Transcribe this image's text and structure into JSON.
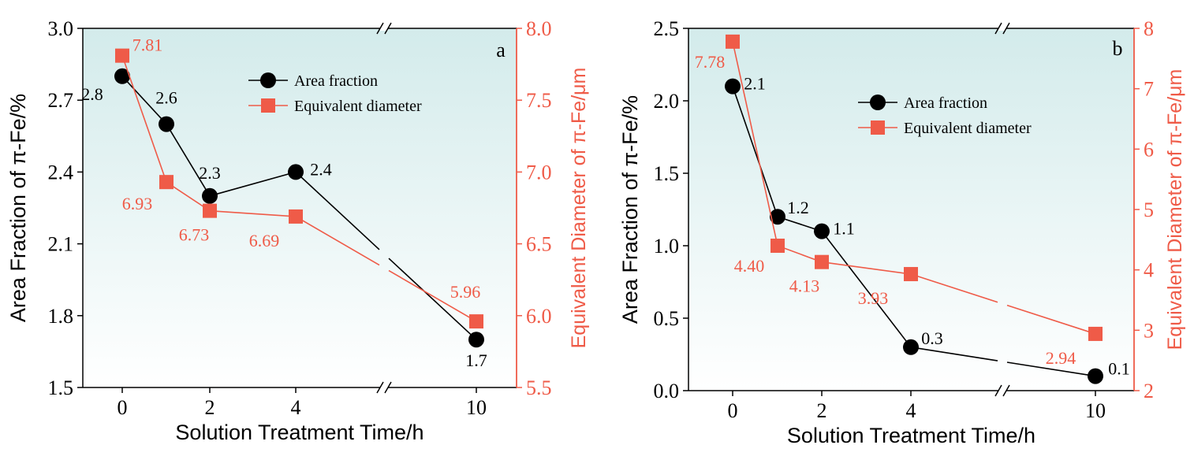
{
  "chart_data": [
    {
      "type": "line",
      "panel_label": "a",
      "xlabel": "Solution Treatment Time/h",
      "ylabel": "Area Fraction of π-Fe/%",
      "y2label": "Equivalent Diameter of π-Fe/μm",
      "x": [
        0,
        1,
        2,
        4,
        10
      ],
      "x_ticks": [
        "0",
        "2",
        "4",
        "10"
      ],
      "x_axis_break": "between 4 and 10",
      "ylim": [
        1.5,
        3.0
      ],
      "y_ticks": [
        "1.5",
        "1.8",
        "2.1",
        "2.4",
        "2.7",
        "3.0"
      ],
      "y2lim": [
        5.5,
        8.0
      ],
      "y2_ticks": [
        "5.5",
        "6.0",
        "6.5",
        "7.0",
        "7.5",
        "8.0"
      ],
      "legend_position": "top-right",
      "series": [
        {
          "name": "Area fraction",
          "axis": "left",
          "color": "#000000",
          "marker": "circle",
          "values": [
            2.8,
            2.6,
            2.3,
            2.4,
            1.7
          ],
          "labels": [
            "2.8",
            "2.6",
            "2.3",
            "2.4",
            "1.7"
          ]
        },
        {
          "name": "Equivalent diameter",
          "axis": "right",
          "color": "#ef5b48",
          "marker": "square",
          "values": [
            7.81,
            6.93,
            6.73,
            6.69,
            5.96
          ],
          "labels": [
            "7.81",
            "6.93",
            "6.73",
            "6.69",
            "5.96"
          ]
        }
      ]
    },
    {
      "type": "line",
      "panel_label": "b",
      "xlabel": "Solution Treatment Time/h",
      "ylabel": "Area Fraction of π-Fe/%",
      "y2label": "Equivalent Diameter of π-Fe/μm",
      "x": [
        0,
        1,
        2,
        4,
        10
      ],
      "x_ticks": [
        "0",
        "2",
        "4",
        "10"
      ],
      "x_axis_break": "between 4 and 10",
      "ylim": [
        0.0,
        2.5
      ],
      "y_ticks": [
        "0.0",
        "0.5",
        "1.0",
        "1.5",
        "2.0",
        "2.5"
      ],
      "y2lim": [
        2,
        8
      ],
      "y2_ticks": [
        "2",
        "3",
        "4",
        "5",
        "6",
        "7",
        "8"
      ],
      "legend_position": "top-center",
      "series": [
        {
          "name": "Area fraction",
          "axis": "left",
          "color": "#000000",
          "marker": "circle",
          "values": [
            2.1,
            1.2,
            1.1,
            0.3,
            0.1
          ],
          "labels": [
            "2.1",
            "1.2",
            "1.1",
            "0.3",
            "0.1"
          ]
        },
        {
          "name": "Equivalent diameter",
          "axis": "right",
          "color": "#ef5b48",
          "marker": "square",
          "values": [
            7.78,
            4.4,
            4.13,
            3.93,
            2.94
          ],
          "labels": [
            "7.78",
            "4.40",
            "4.13",
            "3.93",
            "2.94"
          ]
        }
      ]
    }
  ]
}
